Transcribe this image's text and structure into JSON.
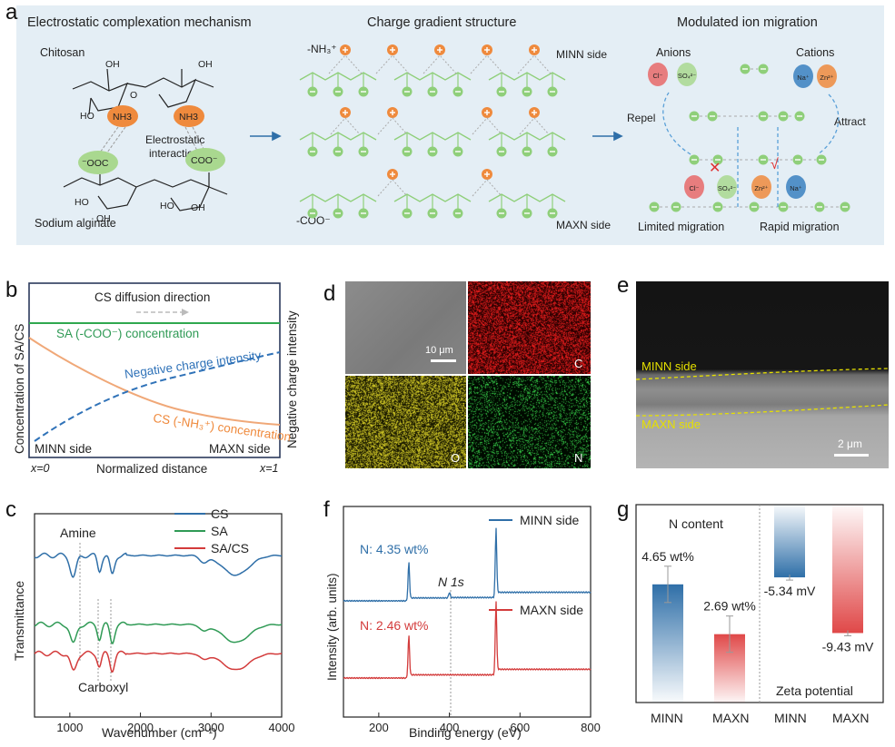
{
  "colors": {
    "blue": "#2f6fa8",
    "green": "#2f9a55",
    "red": "#d33b3b",
    "orange": "#ef8a3d",
    "lightgreen": "#8fcf7a",
    "panel_a_bg": "#e4eef5"
  },
  "panel_a": {
    "letter": "a",
    "titles": [
      "Electrostatic complexation mechanism",
      "Charge gradient structure",
      "Modulated ion migration"
    ],
    "chitosan": "Chitosan",
    "sodium_alginate": "Sodium alginate",
    "electrostatic": "Electrostatic",
    "interaction": "interaction",
    "nh3": "NH3",
    "coo_left": "⁻OOC",
    "coo_right": "COO⁻",
    "minn_side": "MINN side",
    "maxn_side": "MAXN side",
    "nh3_label": "-NH₃⁺",
    "coo_label": "-COO⁻",
    "anions": "Anions",
    "cations": "Cations",
    "repel": "Repel",
    "attract": "Attract",
    "limited": "Limited migration",
    "rapid": "Rapid migration",
    "ions": {
      "cl": "Cl⁻",
      "so4": "SO₄²⁻",
      "na": "Na⁺",
      "zn": "Zn²⁺"
    },
    "oh": "OH",
    "ho": "HO",
    "o": "O"
  },
  "panel_b": {
    "letter": "b",
    "ylabel_left": "Concentration of SA/CS",
    "ylabel_right": "Negative charge intensity",
    "direction": "CS diffusion direction",
    "sa_label": "SA (-COO⁻) concentration",
    "neg_label": "Negative charge intensity",
    "cs_label": "CS (-NH₃⁺) concentration",
    "minn": "MINN side",
    "maxn": "MAXN side",
    "x0": "x=0",
    "x1": "x=1",
    "xlabel": "Normalized distance"
  },
  "panel_c": {
    "letter": "c",
    "legend": [
      "CS",
      "SA",
      "SA/CS"
    ],
    "amine": "Amine",
    "carboxyl": "Carboxyl",
    "ylabel": "Transmittance",
    "xlabel": "Wavenumber (cm⁻¹)",
    "ticks": [
      "1000",
      "2000",
      "3000",
      "4000"
    ]
  },
  "panel_d": {
    "letter": "d",
    "scale": "10 μm",
    "labels": [
      "C",
      "O",
      "N"
    ]
  },
  "panel_e": {
    "letter": "e",
    "minn": "MINN side",
    "maxn": "MAXN side",
    "scale": "2 μm"
  },
  "panel_f": {
    "letter": "f",
    "legend_minn": "MINN side",
    "legend_maxn": "MAXN side",
    "n_minn": "N: 4.35 wt%",
    "n_maxn": "N: 2.46 wt%",
    "n1s": "N 1s",
    "ylabel": "Intensity (arb. units)",
    "xlabel": "Binding energy (eV)",
    "ticks": [
      "200",
      "400",
      "600",
      "800"
    ]
  },
  "panel_g": {
    "letter": "g",
    "n_content": "N content",
    "zeta": "Zeta potential",
    "categories": [
      "MINN",
      "MAXN",
      "MINN",
      "MAXN"
    ]
  },
  "chart_data": [
    {
      "type": "bar",
      "panel": "g-left",
      "title": "N content",
      "categories": [
        "MINN",
        "MAXN"
      ],
      "values": [
        4.65,
        2.69
      ],
      "value_labels": [
        "4.65 wt%",
        "2.69 wt%"
      ],
      "unit": "wt%"
    },
    {
      "type": "bar",
      "panel": "g-right",
      "title": "Zeta potential",
      "categories": [
        "MINN",
        "MAXN"
      ],
      "values": [
        -5.34,
        -9.43
      ],
      "value_labels": [
        "-5.34 mV",
        "-9.43 mV"
      ],
      "unit": "mV"
    },
    {
      "type": "line",
      "panel": "f",
      "xlabel": "Binding energy (eV)",
      "ylabel": "Intensity (arb. units)",
      "xlim": [
        100,
        800
      ],
      "series": [
        {
          "name": "MINN side",
          "peaks_eV": [
            285,
            400,
            532
          ]
        },
        {
          "name": "MAXN side",
          "peaks_eV": [
            285,
            532
          ]
        }
      ]
    },
    {
      "type": "line",
      "panel": "c",
      "xlabel": "Wavenumber (cm⁻¹)",
      "ylabel": "Transmittance",
      "xlim": [
        500,
        4000
      ],
      "series": [
        {
          "name": "CS"
        },
        {
          "name": "SA"
        },
        {
          "name": "SA/CS"
        }
      ]
    }
  ]
}
